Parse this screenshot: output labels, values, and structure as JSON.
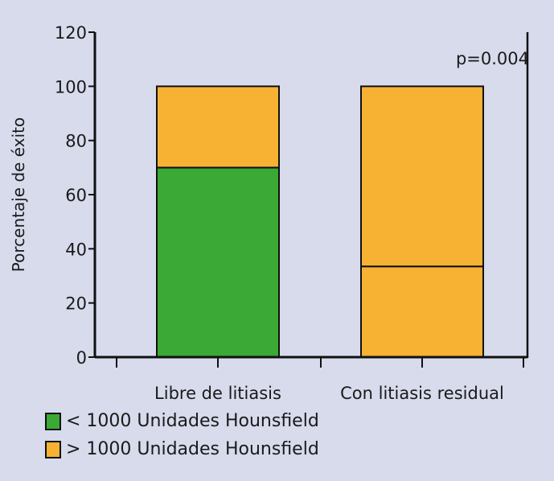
{
  "chart_data": {
    "type": "bar",
    "stacked": true,
    "title": "",
    "xlabel": "",
    "ylabel": "Porcentaje de éxito",
    "ylim": [
      0,
      120
    ],
    "yticks": [
      "0",
      "20",
      "40",
      "60",
      "80",
      "100",
      "120"
    ],
    "categories": [
      "Libre de litiasis",
      "Con litiasis residual"
    ],
    "series": [
      {
        "name": "< 1000 Unidades Hounsfield",
        "color": "#3aa935",
        "values": [
          70,
          33.5
        ]
      },
      {
        "name": "> 1000 Unidades Hounsfield",
        "color": "#f7b233",
        "values": [
          30,
          66.5
        ]
      }
    ],
    "segment_colors": [
      [
        "#3aa935",
        "#f7b233"
      ],
      [
        "#f7b233",
        "#f7b233"
      ]
    ],
    "annotation": "p=0.004",
    "legend_position": "bottom-left",
    "grid": false
  }
}
